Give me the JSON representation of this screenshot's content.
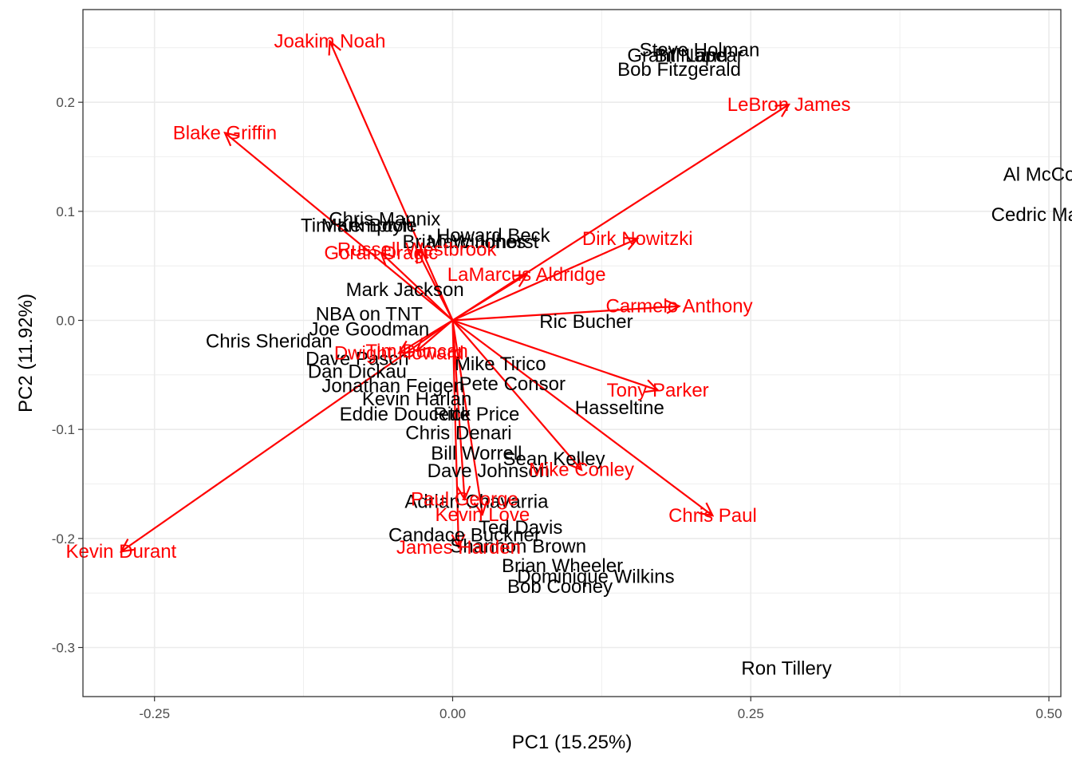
{
  "chart_data": {
    "type": "scatter",
    "subtype": "pca-biplot",
    "title": "",
    "xlabel": "PC1 (15.25%)",
    "ylabel": "PC2 (11.92%)",
    "xlim": [
      -0.31,
      0.51
    ],
    "ylim": [
      -0.345,
      0.285
    ],
    "x_ticks": [
      -0.25,
      0.0,
      0.25,
      0.5
    ],
    "x_tick_labels": [
      "-0.25",
      "0.00",
      "0.25",
      "0.50"
    ],
    "y_ticks": [
      -0.3,
      -0.2,
      -0.1,
      0.0,
      0.1,
      0.2
    ],
    "y_tick_labels": [
      "-0.3",
      "-0.2",
      "-0.1",
      "0.0",
      "0.1",
      "0.2"
    ],
    "grid": true,
    "arrow_color": "#ff0000",
    "point_label_color": "#000000",
    "points": [
      {
        "label": "Steve Holman",
        "x": 0.207,
        "y": 0.248
      },
      {
        "label": "Grant Napear",
        "x": 0.195,
        "y": 0.243
      },
      {
        "label": "Bill Land",
        "x": 0.2,
        "y": 0.243
      },
      {
        "label": "Bob Fitzgerald",
        "x": 0.19,
        "y": 0.23
      },
      {
        "label": "Al McCoy",
        "x": 0.496,
        "y": 0.134
      },
      {
        "label": "Cedric Maxwell",
        "x": 0.506,
        "y": 0.097
      },
      {
        "label": "Ron Tillery",
        "x": 0.28,
        "y": -0.319
      },
      {
        "label": "Chris Mannix",
        "x": -0.057,
        "y": 0.093
      },
      {
        "label": "Tim Kempton",
        "x": -0.08,
        "y": 0.087
      },
      {
        "label": "Mark Boyle",
        "x": -0.07,
        "y": 0.087
      },
      {
        "label": "Howard Beck",
        "x": 0.034,
        "y": 0.078
      },
      {
        "label": "Brian Windhorst",
        "x": 0.015,
        "y": 0.072
      },
      {
        "label": "Marc Jones",
        "x": 0.02,
        "y": 0.072
      },
      {
        "label": "Mark Jackson",
        "x": -0.04,
        "y": 0.028
      },
      {
        "label": "NBA on TNT",
        "x": -0.07,
        "y": 0.006
      },
      {
        "label": "Joe Goodman",
        "x": -0.07,
        "y": -0.008
      },
      {
        "label": "Ric Bucher",
        "x": 0.112,
        "y": -0.001
      },
      {
        "label": "Chris Sheridan",
        "x": -0.154,
        "y": -0.019
      },
      {
        "label": "Dave Pasch",
        "x": -0.08,
        "y": -0.035
      },
      {
        "label": "Dan Dickau",
        "x": -0.08,
        "y": -0.047
      },
      {
        "label": "Mike Tirico",
        "x": 0.04,
        "y": -0.04
      },
      {
        "label": "Jonathan Feigen",
        "x": -0.05,
        "y": -0.06
      },
      {
        "label": "Pete Consor",
        "x": 0.05,
        "y": -0.058
      },
      {
        "label": "Kevin Harlan",
        "x": -0.03,
        "y": -0.072
      },
      {
        "label": "Eddie Doucette",
        "x": -0.04,
        "y": -0.086
      },
      {
        "label": "Rick Price",
        "x": 0.02,
        "y": -0.086
      },
      {
        "label": "Hasseltine",
        "x": 0.14,
        "y": -0.08
      },
      {
        "label": "Chris Denari",
        "x": 0.005,
        "y": -0.103
      },
      {
        "label": "Bill Worrell",
        "x": 0.02,
        "y": -0.122
      },
      {
        "label": "Sean Kelley",
        "x": 0.085,
        "y": -0.127
      },
      {
        "label": "Dave Johnson",
        "x": 0.03,
        "y": -0.138
      },
      {
        "label": "Adrian Chavarria",
        "x": 0.02,
        "y": -0.166
      },
      {
        "label": "Ted Davis",
        "x": 0.057,
        "y": -0.19
      },
      {
        "label": "Candace Buckner",
        "x": 0.01,
        "y": -0.197
      },
      {
        "label": "Shannon Brown",
        "x": 0.055,
        "y": -0.207
      },
      {
        "label": "Brian Wheeler",
        "x": 0.092,
        "y": -0.225
      },
      {
        "label": "Dominique Wilkins",
        "x": 0.12,
        "y": -0.235
      },
      {
        "label": "Bob Cooney",
        "x": 0.09,
        "y": -0.244
      }
    ],
    "arrows": [
      {
        "label": "Joakim Noah",
        "x": -0.103,
        "y": 0.256
      },
      {
        "label": "Blake Griffin",
        "x": -0.191,
        "y": 0.172
      },
      {
        "label": "LeBron James",
        "x": 0.282,
        "y": 0.198
      },
      {
        "label": "Dirk Nowitzki",
        "x": 0.155,
        "y": 0.075
      },
      {
        "label": "LaMarcus Aldridge",
        "x": 0.062,
        "y": 0.042
      },
      {
        "label": "Carmelo Anthony",
        "x": 0.19,
        "y": 0.013
      },
      {
        "label": "Goran Dragic",
        "x": -0.06,
        "y": 0.062
      },
      {
        "label": "Russell Westbrook",
        "x": -0.03,
        "y": 0.065
      },
      {
        "label": "Tony Parker",
        "x": 0.172,
        "y": -0.064
      },
      {
        "label": "Chris Paul",
        "x": 0.218,
        "y": -0.179
      },
      {
        "label": "Mike Conley",
        "x": 0.108,
        "y": -0.137
      },
      {
        "label": "Paul George",
        "x": 0.01,
        "y": -0.164
      },
      {
        "label": "Kevin Love",
        "x": 0.025,
        "y": -0.178
      },
      {
        "label": "James Harden",
        "x": 0.005,
        "y": -0.208
      },
      {
        "label": "Kevin Durant",
        "x": -0.278,
        "y": -0.212
      },
      {
        "label": "Tim Duncan",
        "x": -0.03,
        "y": -0.028
      },
      {
        "label": "Dwight Howard",
        "x": -0.045,
        "y": -0.03
      }
    ]
  }
}
